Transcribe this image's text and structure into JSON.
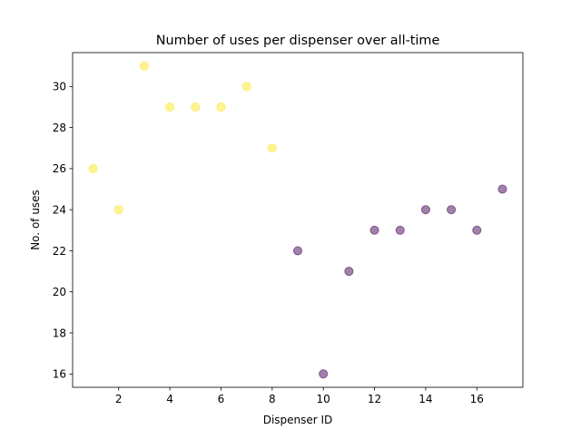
{
  "chart_data": {
    "type": "scatter",
    "title": "Number of uses per dispenser over all-time",
    "xlabel": "Dispenser ID",
    "ylabel": "No. of uses",
    "xlim": [
      0.2,
      17.8
    ],
    "ylim": [
      15.35,
      31.65
    ],
    "xticks": [
      2,
      4,
      6,
      8,
      10,
      12,
      14,
      16
    ],
    "yticks": [
      16,
      18,
      20,
      22,
      24,
      26,
      28,
      30
    ],
    "grid": false,
    "legend": "none",
    "points": [
      {
        "x": 1,
        "y": 26,
        "group": "high"
      },
      {
        "x": 2,
        "y": 24,
        "group": "high"
      },
      {
        "x": 3,
        "y": 31,
        "group": "high"
      },
      {
        "x": 4,
        "y": 29,
        "group": "high"
      },
      {
        "x": 5,
        "y": 29,
        "group": "high"
      },
      {
        "x": 6,
        "y": 29,
        "group": "high"
      },
      {
        "x": 7,
        "y": 30,
        "group": "high"
      },
      {
        "x": 8,
        "y": 27,
        "group": "high"
      },
      {
        "x": 9,
        "y": 22,
        "group": "low"
      },
      {
        "x": 10,
        "y": 16,
        "group": "low"
      },
      {
        "x": 11,
        "y": 21,
        "group": "low"
      },
      {
        "x": 12,
        "y": 23,
        "group": "low"
      },
      {
        "x": 13,
        "y": 23,
        "group": "low"
      },
      {
        "x": 14,
        "y": 24,
        "group": "low"
      },
      {
        "x": 15,
        "y": 24,
        "group": "low"
      },
      {
        "x": 16,
        "y": 23,
        "group": "low"
      },
      {
        "x": 17,
        "y": 25,
        "group": "low"
      }
    ],
    "colors": {
      "high": "#fde725",
      "low": "#440154"
    },
    "marker_alpha": 0.5
  }
}
